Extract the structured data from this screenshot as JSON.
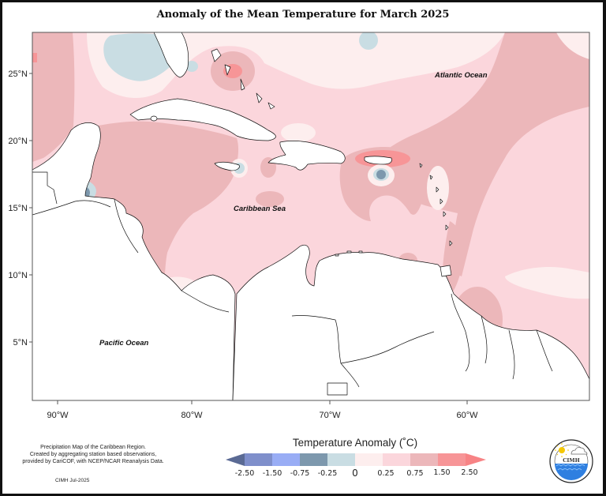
{
  "title": "Anomaly of the Mean Temperature for March 2025",
  "map": {
    "latitude_labels": [
      "25°N",
      "20°N",
      "15°N",
      "10°N",
      "5°N"
    ],
    "longitude_labels": [
      "90°W",
      "80°W",
      "70°W",
      "60°W"
    ],
    "place_labels": {
      "atlantic": "Atlantic Ocean",
      "caribbean": "Caribbean Sea",
      "pacific": "Pacific Ocean"
    }
  },
  "legend": {
    "title": "Temperature Anomaly (˚C)",
    "labels": [
      "-2.50",
      "-1.50",
      "-0.75",
      "-0.25",
      "0",
      "0.25",
      "0.75",
      "1.50",
      "2.50"
    ],
    "colors": {
      "below_min": "#5a6a94",
      "n2_5_n1_5": "#7f8fcb",
      "n1_5_n0_75": "#99adf5",
      "n0_75_n0_25": "#7d98ad",
      "n0_25_0": "#c9dde3",
      "0_0_25": "#fdeeee",
      "0_25_0_75": "#fbd6dc",
      "0_75_1_5": "#ecb7ba",
      "1_5_2_5": "#f79597",
      "above_max": "#f78385"
    }
  },
  "credit": {
    "line1": "Precipitation Map of the Caribbean Region.",
    "line2": "Created by aggregating station based observations,",
    "line3": "provided by CariCOF, with NCEP/NCAR Reanalysis Data.",
    "date": "CIMH Jul-2025"
  },
  "logo": {
    "text": "CIMH",
    "ring_text": "Caribbean Institute for Meteorology and Hydrology"
  }
}
